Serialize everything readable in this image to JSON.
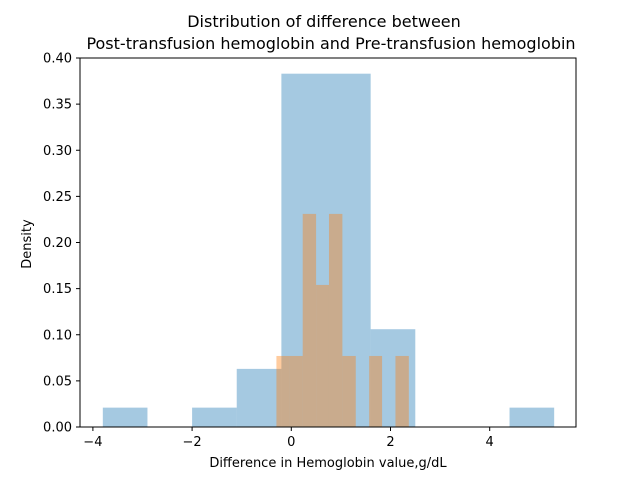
{
  "chart_data": {
    "type": "bar",
    "title_lines": [
      "Distribution of difference between",
      "Post-transfusion hemoglobin and Pre-transfusion hemoglobin"
    ],
    "xlabel": "Difference in Hemoglobin value,g/dL",
    "ylabel": "Density",
    "xlim": [
      -4.26,
      5.74
    ],
    "ylim": [
      0,
      0.4
    ],
    "xticks": [
      -4,
      -2,
      0,
      2,
      4
    ],
    "xtick_labels": [
      "−4",
      "−2",
      "0",
      "2",
      "4"
    ],
    "yticks": [
      0.0,
      0.05,
      0.1,
      0.15,
      0.2,
      0.25,
      0.3,
      0.35,
      0.4
    ],
    "ytick_labels": [
      "0.00",
      "0.05",
      "0.10",
      "0.15",
      "0.20",
      "0.25",
      "0.30",
      "0.35",
      "0.40"
    ],
    "grid": false,
    "series": [
      {
        "color": "#1f77b4",
        "alpha": 0.4,
        "bins": [
          {
            "x0": -3.8,
            "x1": -2.9,
            "density": 0.021
          },
          {
            "x0": -2.0,
            "x1": -1.1,
            "density": 0.021
          },
          {
            "x0": -1.1,
            "x1": -0.2,
            "density": 0.063
          },
          {
            "x0": -0.2,
            "x1": 0.7,
            "density": 0.383
          },
          {
            "x0": 0.7,
            "x1": 1.6,
            "density": 0.383
          },
          {
            "x0": 1.6,
            "x1": 2.5,
            "density": 0.106
          },
          {
            "x0": 4.4,
            "x1": 5.3,
            "density": 0.021
          }
        ]
      },
      {
        "color": "#ff7f0e",
        "alpha": 0.4,
        "bins": [
          {
            "x0": -0.3,
            "x1": -0.04,
            "density": 0.077
          },
          {
            "x0": -0.04,
            "x1": 0.23,
            "density": 0.077
          },
          {
            "x0": 0.23,
            "x1": 0.5,
            "density": 0.231
          },
          {
            "x0": 0.5,
            "x1": 0.76,
            "density": 0.154
          },
          {
            "x0": 0.76,
            "x1": 1.03,
            "density": 0.231
          },
          {
            "x0": 1.03,
            "x1": 1.3,
            "density": 0.077
          },
          {
            "x0": 1.57,
            "x1": 1.83,
            "density": 0.077
          },
          {
            "x0": 2.1,
            "x1": 2.37,
            "density": 0.077
          }
        ]
      }
    ]
  }
}
